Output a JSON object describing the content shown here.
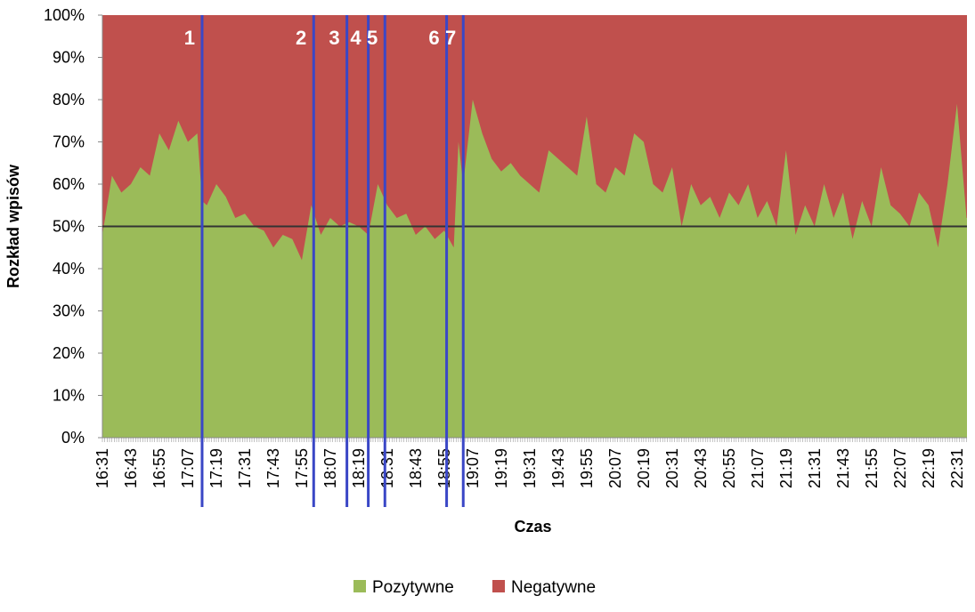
{
  "chart_data": {
    "type": "area",
    "stacked": "percent",
    "xlabel": "Czas",
    "ylabel": "Rozkład wpisów",
    "x_ticks": [
      "16:31",
      "16:43",
      "16:55",
      "17:07",
      "17:19",
      "17:31",
      "17:43",
      "17:55",
      "18:07",
      "18:19",
      "18:31",
      "18:43",
      "18:55",
      "19:07",
      "19:19",
      "19:31",
      "19:43",
      "19:55",
      "20:07",
      "20:19",
      "20:31",
      "20:43",
      "20:55",
      "21:07",
      "21:19",
      "21:31",
      "21:43",
      "21:55",
      "22:07",
      "22:19",
      "22:31"
    ],
    "y_ticks": [
      "0%",
      "10%",
      "20%",
      "30%",
      "40%",
      "50%",
      "60%",
      "70%",
      "80%",
      "90%",
      "100%"
    ],
    "ylim": [
      0,
      100
    ],
    "legend": {
      "position": "bottom"
    },
    "series": [
      {
        "name": "Pozytywne",
        "color": "#9BBB59"
      },
      {
        "name": "Negatywne",
        "color": "#C0504D"
      }
    ],
    "reference_line": {
      "y": 50,
      "color": "#333333"
    },
    "markers": [
      {
        "label": "1",
        "time": "17:13",
        "color": "#3A47C6"
      },
      {
        "label": "2",
        "time": "18:00",
        "color": "#3A47C6"
      },
      {
        "label": "3",
        "time": "18:14",
        "color": "#3A47C6"
      },
      {
        "label": "4",
        "time": "18:23",
        "color": "#3A47C6"
      },
      {
        "label": "5",
        "time": "18:30",
        "color": "#3A47C6"
      },
      {
        "label": "6",
        "time": "18:56",
        "color": "#3A47C6"
      },
      {
        "label": "7",
        "time": "19:03",
        "color": "#3A47C6"
      }
    ],
    "x": [
      "16:31",
      "16:35",
      "16:39",
      "16:43",
      "16:47",
      "16:51",
      "16:55",
      "16:59",
      "17:03",
      "17:07",
      "17:11",
      "17:13",
      "17:15",
      "17:19",
      "17:23",
      "17:27",
      "17:31",
      "17:35",
      "17:39",
      "17:43",
      "17:47",
      "17:51",
      "17:55",
      "17:59",
      "18:03",
      "18:07",
      "18:11",
      "18:15",
      "18:19",
      "18:23",
      "18:27",
      "18:31",
      "18:35",
      "18:39",
      "18:43",
      "18:47",
      "18:51",
      "18:55",
      "18:59",
      "19:01",
      "19:03",
      "19:07",
      "19:11",
      "19:15",
      "19:19",
      "19:23",
      "19:27",
      "19:31",
      "19:35",
      "19:39",
      "19:43",
      "19:47",
      "19:51",
      "19:55",
      "19:59",
      "20:03",
      "20:07",
      "20:11",
      "20:15",
      "20:19",
      "20:23",
      "20:27",
      "20:31",
      "20:35",
      "20:39",
      "20:43",
      "20:47",
      "20:51",
      "20:55",
      "20:59",
      "21:03",
      "21:07",
      "21:11",
      "21:15",
      "21:19",
      "21:23",
      "21:27",
      "21:31",
      "21:35",
      "21:39",
      "21:43",
      "21:47",
      "21:51",
      "21:55",
      "21:59",
      "22:03",
      "22:07",
      "22:11",
      "22:15",
      "22:19",
      "22:23",
      "22:27",
      "22:31",
      "22:35"
    ],
    "values_positive": [
      48,
      62,
      58,
      60,
      64,
      62,
      72,
      68,
      75,
      70,
      72,
      56,
      55,
      60,
      57,
      52,
      53,
      50,
      49,
      45,
      48,
      47,
      42,
      55,
      48,
      52,
      50,
      51,
      50,
      48,
      60,
      55,
      52,
      53,
      48,
      50,
      47,
      49,
      45,
      70,
      60,
      80,
      72,
      66,
      63,
      65,
      62,
      60,
      58,
      68,
      66,
      64,
      62,
      76,
      60,
      58,
      64,
      62,
      72,
      70,
      60,
      58,
      64,
      50,
      60,
      55,
      57,
      52,
      58,
      55,
      60,
      52,
      56,
      50,
      68,
      48,
      55,
      50,
      60,
      52,
      58,
      47,
      56,
      50,
      64,
      55,
      53,
      50,
      58,
      55,
      45,
      60,
      79,
      52
    ]
  },
  "legend_items": [
    "Pozytywne",
    "Negatywne"
  ]
}
